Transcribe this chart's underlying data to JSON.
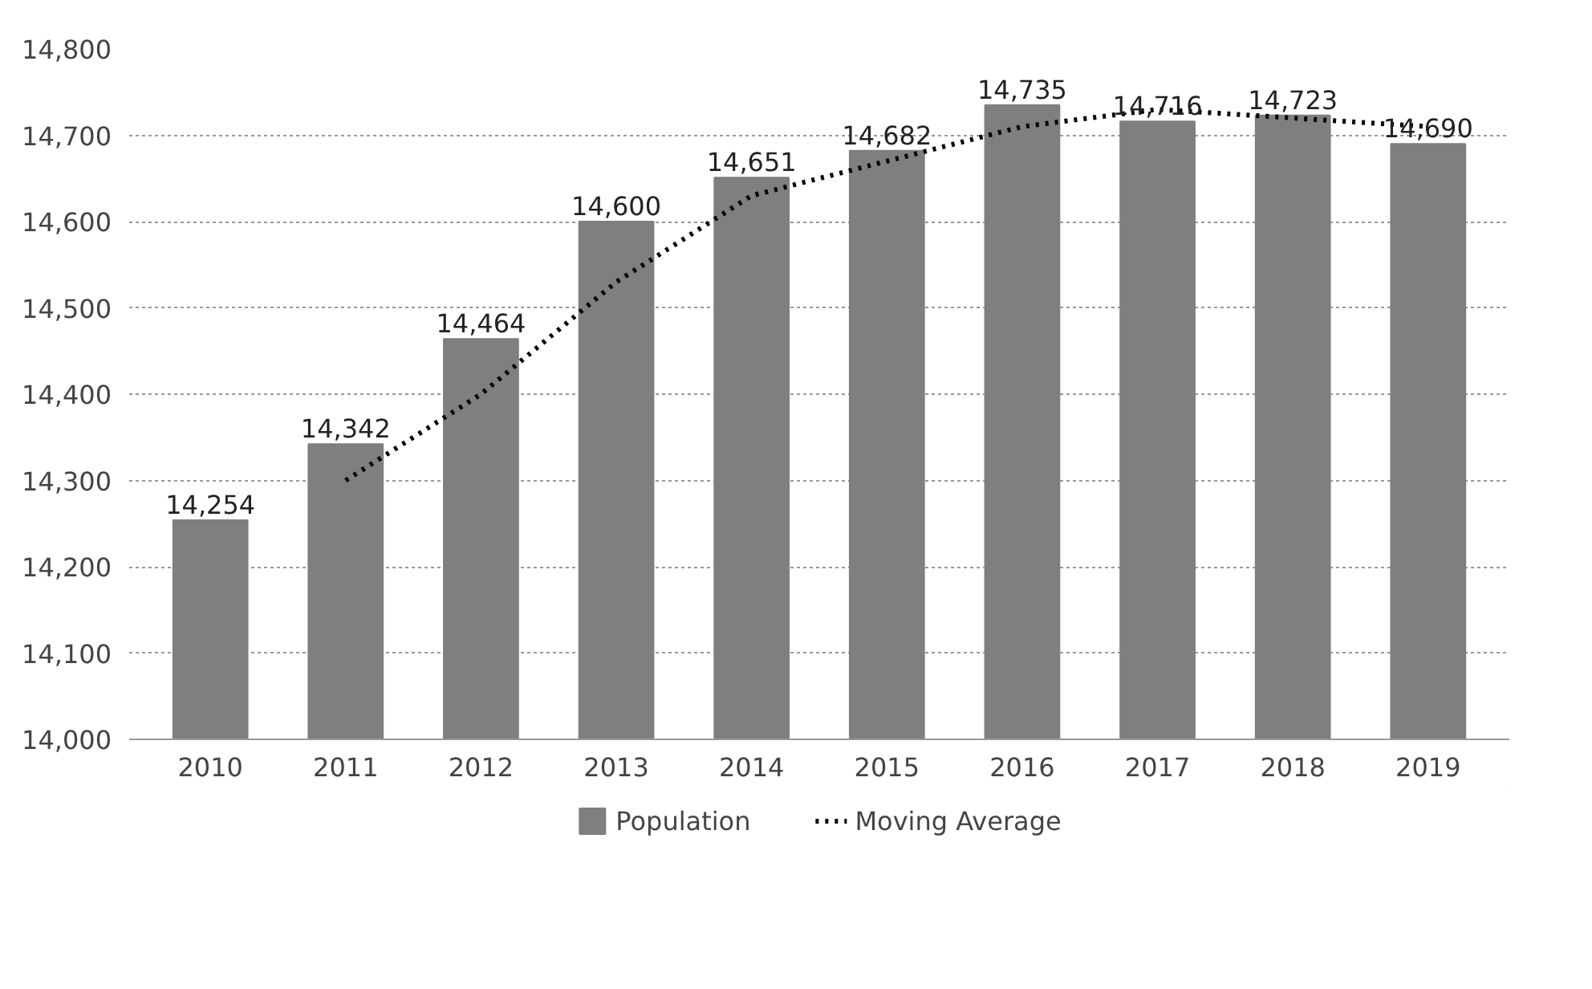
{
  "chart_data": {
    "type": "bar",
    "categories": [
      "2010",
      "2011",
      "2012",
      "2013",
      "2014",
      "2015",
      "2016",
      "2017",
      "2018",
      "2019"
    ],
    "series": [
      {
        "name": "Population",
        "color": "#7f7f7f",
        "values": [
          14254,
          14342,
          14464,
          14600,
          14651,
          14682,
          14735,
          14716,
          14723,
          14690
        ],
        "value_labels": [
          "14,254",
          "14,342",
          "14,464",
          "14,600",
          "14,651",
          "14,682",
          "14,735",
          "14,716",
          "14,723",
          "14,690"
        ]
      },
      {
        "name": "Moving Average",
        "type": "line",
        "color": "#000000",
        "line_style": "dotted",
        "marker": "none",
        "values": [
          null,
          14300,
          14400,
          14530,
          14630,
          14670,
          14710,
          14730,
          14720,
          14710
        ]
      }
    ],
    "ylim": [
      14000,
      14800
    ],
    "yticks": [
      {
        "value": 14000,
        "label": "14,000"
      },
      {
        "value": 14100,
        "label": "14,100"
      },
      {
        "value": 14200,
        "label": "14,200"
      },
      {
        "value": 14300,
        "label": "14,300"
      },
      {
        "value": 14400,
        "label": "14,400"
      },
      {
        "value": 14500,
        "label": "14,500"
      },
      {
        "value": 14600,
        "label": "14,600"
      },
      {
        "value": 14700,
        "label": "14,700"
      },
      {
        "value": 14800,
        "label": "14,800"
      }
    ],
    "grid": "y",
    "legend": "bottom"
  }
}
